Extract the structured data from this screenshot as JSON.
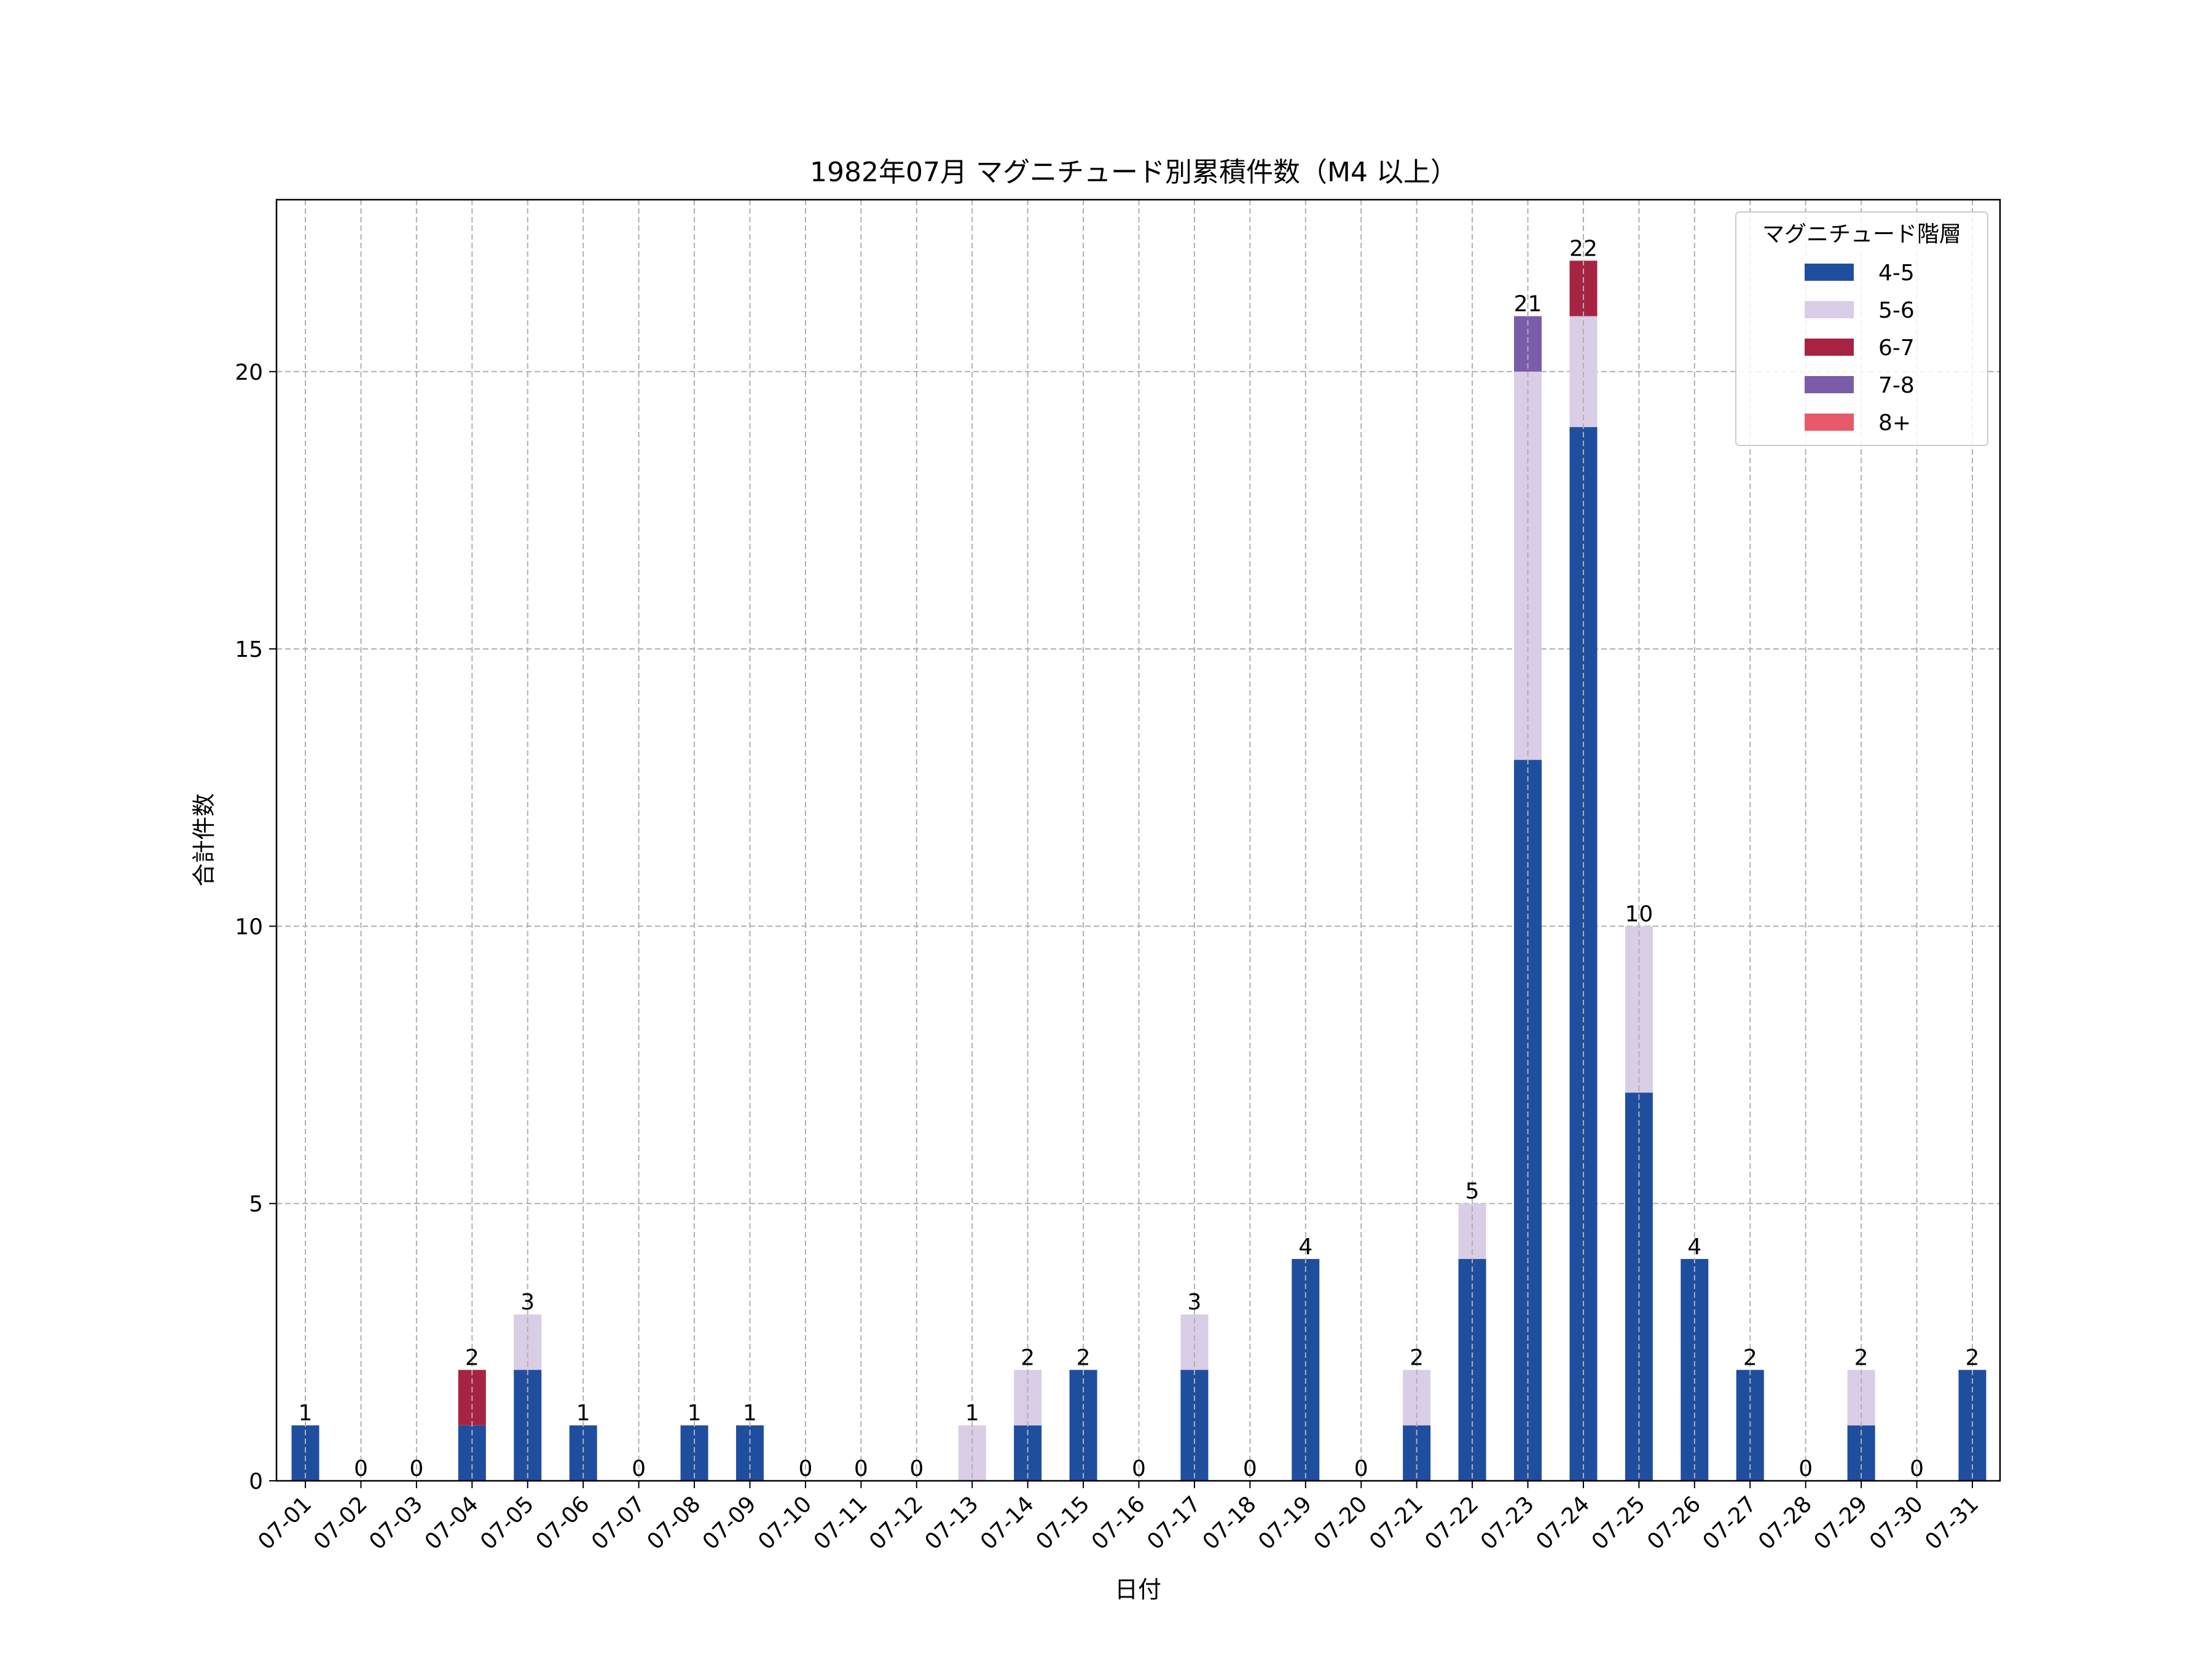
{
  "chart_data": {
    "type": "bar",
    "stacked": true,
    "title": "1982年07月 マグニチュード別累積件数（M4 以上）",
    "xlabel": "日付",
    "ylabel": "合計件数",
    "ylim": [
      0,
      23.1
    ],
    "yticks": [
      0,
      5,
      10,
      15,
      20
    ],
    "grid": true,
    "legend_title": "マグニチュード階層",
    "legend_position": "top-right",
    "categories": [
      "07-01",
      "07-02",
      "07-03",
      "07-04",
      "07-05",
      "07-06",
      "07-07",
      "07-08",
      "07-09",
      "07-10",
      "07-11",
      "07-12",
      "07-13",
      "07-14",
      "07-15",
      "07-16",
      "07-17",
      "07-18",
      "07-19",
      "07-20",
      "07-21",
      "07-22",
      "07-23",
      "07-24",
      "07-25",
      "07-26",
      "07-27",
      "07-28",
      "07-29",
      "07-30",
      "07-31"
    ],
    "series": [
      {
        "name": "4-5",
        "color": "#1f4e9e",
        "values": [
          1,
          0,
          0,
          1,
          2,
          1,
          0,
          1,
          1,
          0,
          0,
          0,
          0,
          1,
          2,
          0,
          2,
          0,
          4,
          0,
          1,
          4,
          13,
          19,
          7,
          4,
          2,
          0,
          1,
          0,
          2
        ]
      },
      {
        "name": "5-6",
        "color": "#dacde6",
        "values": [
          0,
          0,
          0,
          0,
          1,
          0,
          0,
          0,
          0,
          0,
          0,
          0,
          1,
          1,
          0,
          0,
          1,
          0,
          0,
          0,
          1,
          1,
          7,
          2,
          3,
          0,
          0,
          0,
          1,
          0,
          0
        ]
      },
      {
        "name": "6-7",
        "color": "#a72344",
        "values": [
          0,
          0,
          0,
          1,
          0,
          0,
          0,
          0,
          0,
          0,
          0,
          0,
          0,
          0,
          0,
          0,
          0,
          0,
          0,
          0,
          0,
          0,
          0,
          1,
          0,
          0,
          0,
          0,
          0,
          0,
          0
        ]
      },
      {
        "name": "7-8",
        "color": "#7a5ca8",
        "values": [
          0,
          0,
          0,
          0,
          0,
          0,
          0,
          0,
          0,
          0,
          0,
          0,
          0,
          0,
          0,
          0,
          0,
          0,
          0,
          0,
          0,
          0,
          1,
          0,
          0,
          0,
          0,
          0,
          0,
          0,
          0
        ]
      },
      {
        "name": "8+",
        "color": "#e85a6a",
        "values": [
          0,
          0,
          0,
          0,
          0,
          0,
          0,
          0,
          0,
          0,
          0,
          0,
          0,
          0,
          0,
          0,
          0,
          0,
          0,
          0,
          0,
          0,
          0,
          0,
          0,
          0,
          0,
          0,
          0,
          0,
          0
        ]
      }
    ],
    "totals": [
      1,
      0,
      0,
      2,
      3,
      1,
      0,
      1,
      1,
      0,
      0,
      0,
      1,
      2,
      2,
      0,
      3,
      0,
      4,
      0,
      2,
      5,
      21,
      22,
      10,
      4,
      2,
      0,
      2,
      0,
      2
    ]
  }
}
